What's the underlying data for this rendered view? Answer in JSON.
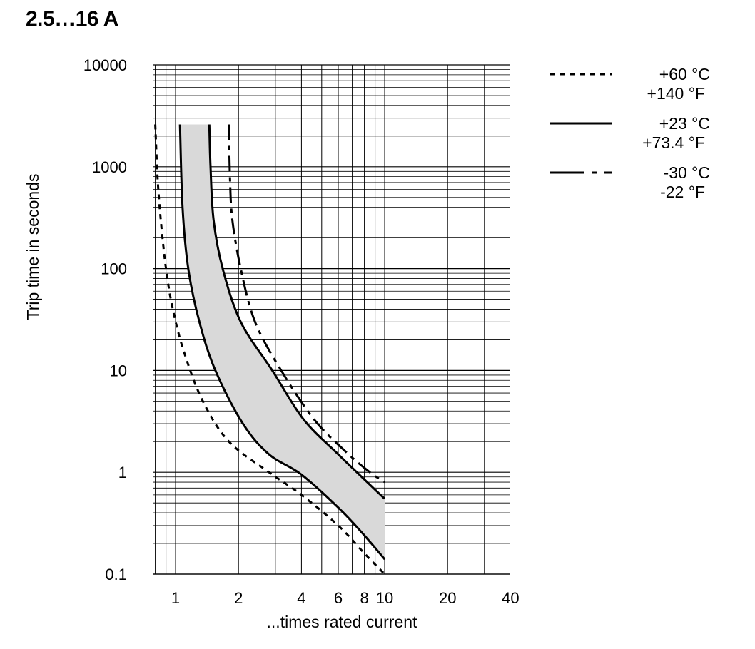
{
  "title": "2.5…16 A",
  "chart_data": {
    "type": "line",
    "title": "2.5…16 A",
    "xlabel": "...times rated current",
    "ylabel": "Trip time in seconds",
    "xscale": "log",
    "yscale": "log",
    "xlim": [
      0.7,
      40
    ],
    "ylim": [
      0.1,
      10000
    ],
    "x_ticks": [
      {
        "value": 1,
        "label": "1"
      },
      {
        "value": 2,
        "label": "2"
      },
      {
        "value": 4,
        "label": "4"
      },
      {
        "value": 6,
        "label": "6"
      },
      {
        "value": 8,
        "label": "8"
      },
      {
        "value": 10,
        "label": "10"
      },
      {
        "value": 20,
        "label": "20"
      },
      {
        "value": 40,
        "label": "40"
      }
    ],
    "y_ticks": [
      {
        "value": 0.1,
        "label": "0.1"
      },
      {
        "value": 1,
        "label": "1"
      },
      {
        "value": 10,
        "label": "10"
      },
      {
        "value": 100,
        "label": "100"
      },
      {
        "value": 1000,
        "label": "1000"
      },
      {
        "value": 10000,
        "label": "10000"
      }
    ],
    "grid": true,
    "legend_position": "right",
    "band": {
      "color": "#d9d9d9",
      "lower": [
        [
          1.05,
          2600
        ],
        [
          1.08,
          400
        ],
        [
          1.15,
          100
        ],
        [
          1.3,
          30
        ],
        [
          1.55,
          10
        ],
        [
          2.1,
          3
        ],
        [
          2.8,
          1.5
        ],
        [
          4,
          0.95
        ],
        [
          6,
          0.45
        ],
        [
          8,
          0.24
        ],
        [
          10,
          0.14
        ]
      ],
      "upper": [
        [
          1.45,
          2600
        ],
        [
          1.47,
          1000
        ],
        [
          1.52,
          300
        ],
        [
          1.68,
          100
        ],
        [
          2.05,
          30
        ],
        [
          2.9,
          10
        ],
        [
          4.1,
          3.3
        ],
        [
          6,
          1.5
        ],
        [
          8,
          0.85
        ],
        [
          10,
          0.55
        ]
      ]
    },
    "series": [
      {
        "name": "+60 °C\n+140 °F",
        "style": "dashed",
        "points": [
          [
            0.8,
            2600
          ],
          [
            0.82,
            800
          ],
          [
            0.85,
            300
          ],
          [
            0.9,
            100
          ],
          [
            0.97,
            40
          ],
          [
            1.1,
            15
          ],
          [
            1.35,
            5
          ],
          [
            1.8,
            2
          ],
          [
            2.8,
            1
          ],
          [
            4,
            0.6
          ],
          [
            6,
            0.3
          ],
          [
            8,
            0.16
          ],
          [
            10,
            0.1
          ]
        ]
      },
      {
        "name": "+23 °C\n+73.4 °F",
        "style": "solid",
        "points": [
          [
            1.05,
            2600
          ],
          [
            1.08,
            400
          ],
          [
            1.15,
            100
          ],
          [
            1.3,
            30
          ],
          [
            1.55,
            10
          ],
          [
            2.1,
            3
          ],
          [
            2.8,
            1.5
          ],
          [
            4,
            0.95
          ],
          [
            6,
            0.45
          ],
          [
            8,
            0.24
          ],
          [
            10,
            0.14
          ]
        ]
      },
      {
        "name": "+23 °C\n+73.4 °F",
        "style": "solid",
        "points": [
          [
            1.45,
            2600
          ],
          [
            1.47,
            1000
          ],
          [
            1.52,
            300
          ],
          [
            1.68,
            100
          ],
          [
            2.05,
            30
          ],
          [
            2.9,
            10
          ],
          [
            4.1,
            3.3
          ],
          [
            6,
            1.5
          ],
          [
            8,
            0.85
          ],
          [
            10,
            0.55
          ]
        ]
      },
      {
        "name": "-30 °C\n-22 °F",
        "style": "dashdot",
        "points": [
          [
            1.8,
            2600
          ],
          [
            1.82,
            800
          ],
          [
            1.87,
            300
          ],
          [
            2.05,
            100
          ],
          [
            2.4,
            30
          ],
          [
            3.2,
            10
          ],
          [
            4.6,
            3.3
          ],
          [
            6.5,
            1.6
          ],
          [
            8.5,
            1
          ],
          [
            10,
            0.8
          ]
        ]
      }
    ],
    "legend": [
      {
        "style": "dashed",
        "label1": "+60 °C",
        "label2": "+140 °F"
      },
      {
        "style": "solid",
        "label1": "+23 °C",
        "label2": "+73.4 °F"
      },
      {
        "style": "dashdot",
        "label1": "-30 °C",
        "label2": "-22 °F"
      }
    ]
  }
}
